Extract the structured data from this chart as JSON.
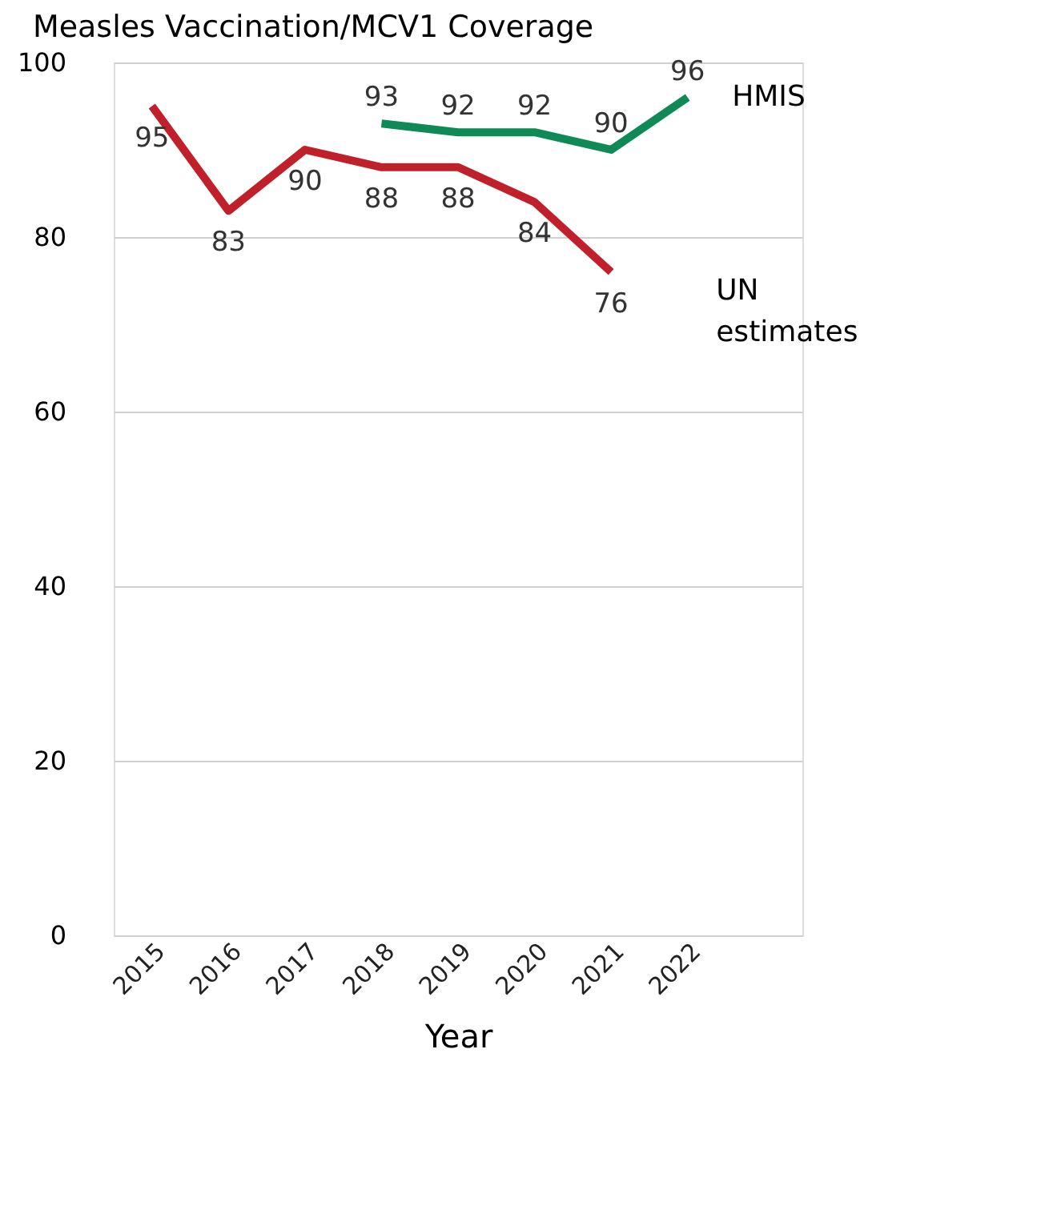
{
  "chart_data": {
    "type": "line",
    "title": "Measles Vaccination/MCV1 Coverage",
    "xlabel": "Year",
    "categories": [
      "2015",
      "2016",
      "2017",
      "2018",
      "2019",
      "2020",
      "2021",
      "2022",
      null
    ],
    "series": [
      {
        "name": "UN estimates",
        "color": "#c0202a",
        "values": [
          95,
          83,
          90,
          88,
          88,
          84,
          76,
          null,
          null
        ]
      },
      {
        "name": "HMIS",
        "color": "#0f8a57",
        "values": [
          null,
          null,
          null,
          93,
          92,
          92,
          90,
          96,
          null
        ]
      }
    ],
    "ylim": [
      0,
      100
    ],
    "yticks": [
      0,
      20,
      40,
      60,
      80,
      100
    ],
    "grid": "y",
    "data_labels": true,
    "marker": "none",
    "line_style": "solid"
  }
}
